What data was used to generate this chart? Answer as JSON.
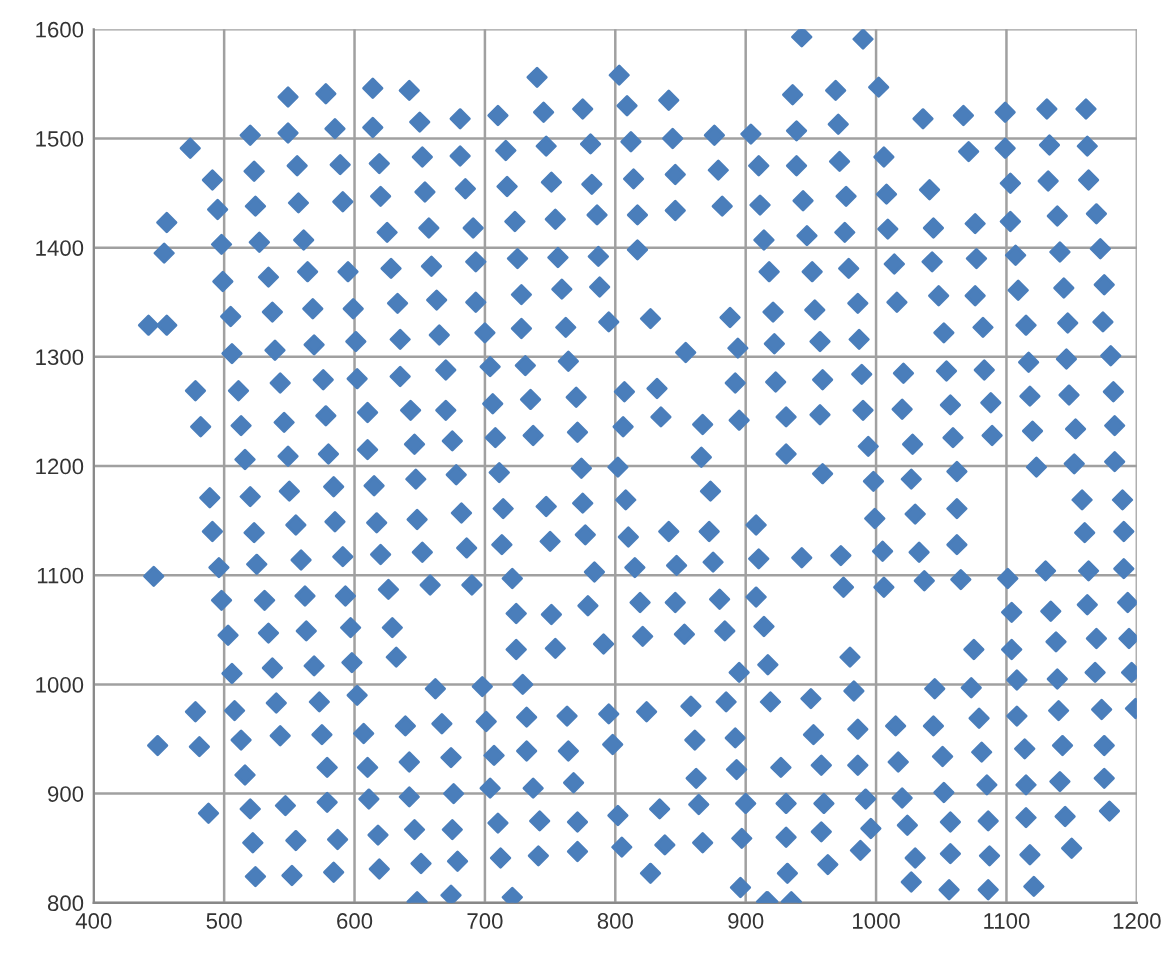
{
  "chart_data": {
    "type": "scatter",
    "marker": "diamond",
    "grid": true,
    "xlim": [
      400,
      1200
    ],
    "ylim": [
      800,
      1600
    ],
    "xticks": [
      400,
      500,
      600,
      700,
      800,
      900,
      1000,
      1100,
      1200
    ],
    "yticks": [
      800,
      900,
      1000,
      1100,
      1200,
      1300,
      1400,
      1500,
      1600
    ],
    "series": [
      {
        "color": "#4a7ebb",
        "x": [
          549,
          578,
          614,
          642,
          520,
          549,
          585,
          614,
          650,
          474,
          491,
          523,
          556,
          589,
          619,
          652,
          495,
          524,
          557,
          591,
          620,
          654,
          456,
          454,
          498,
          527,
          561,
          625,
          657,
          499,
          534,
          564,
          595,
          628,
          659,
          442,
          456,
          505,
          537,
          568,
          599,
          633,
          663,
          506,
          539,
          569,
          601,
          635,
          478,
          511,
          543,
          576,
          602,
          635,
          482,
          513,
          546,
          578,
          610,
          643,
          516,
          549,
          580,
          610,
          646,
          740,
          803,
          681,
          710,
          745,
          775,
          809,
          841,
          681,
          716,
          747,
          781,
          812,
          844,
          876,
          904,
          685,
          717,
          751,
          782,
          814,
          846,
          879,
          910,
          691,
          723,
          754,
          786,
          817,
          846,
          882,
          911,
          914,
          693,
          725,
          756,
          787,
          817,
          918,
          693,
          728,
          759,
          788,
          921,
          665,
          700,
          728,
          762,
          795,
          827,
          888,
          922,
          894,
          854,
          670,
          704,
          731,
          764,
          892,
          923,
          670,
          706,
          735,
          770,
          807,
          832,
          675,
          708,
          737,
          771,
          806,
          835,
          867,
          895,
          866,
          678,
          711,
          774,
          802,
          943,
          990,
          936,
          969,
          1002,
          1036,
          1067,
          1099,
          1131,
          1161,
          939,
          971,
          1071,
          1099,
          1133,
          1162,
          939,
          972,
          1006,
          1103,
          1132,
          1163,
          944,
          977,
          1008,
          1041,
          947,
          976,
          1009,
          1044,
          1076,
          1103,
          1139,
          1169,
          951,
          979,
          1014,
          1043,
          1077,
          1107,
          1141,
          1172,
          953,
          986,
          1016,
          1048,
          1076,
          1109,
          1144,
          1175,
          957,
          987,
          1052,
          1082,
          1115,
          1147,
          1174,
          959,
          989,
          1021,
          1054,
          1083,
          1117,
          1146,
          1180,
          931,
          957,
          990,
          1020,
          1057,
          1088,
          1118,
          1148,
          1182,
          931,
          994,
          1028,
          1059,
          1089,
          1120,
          1153,
          1183,
          959,
          1062,
          1123,
          1152,
          1183,
          489,
          520,
          550,
          584,
          615,
          647,
          491,
          523,
          555,
          585,
          617,
          648,
          446,
          496,
          525,
          559,
          591,
          620,
          652,
          626,
          658,
          498,
          531,
          562,
          593,
          503,
          534,
          563,
          597,
          629,
          506,
          537,
          569,
          598,
          632,
          602,
          662,
          478,
          508,
          540,
          573,
          449,
          481,
          513,
          543,
          575,
          607,
          639,
          516,
          579,
          610,
          642,
          488,
          520,
          547,
          579,
          611,
          642,
          522,
          555,
          587,
          618,
          646,
          524,
          552,
          584,
          619,
          651,
          648,
          682,
          714,
          747,
          775,
          808,
          873,
          686,
          713,
          750,
          777,
          810,
          841,
          872,
          908,
          690,
          721,
          784,
          815,
          847,
          875,
          910,
          724,
          751,
          779,
          819,
          846,
          880,
          908,
          914,
          724,
          754,
          791,
          821,
          853,
          884,
          895,
          917,
          698,
          729,
          667,
          701,
          732,
          763,
          795,
          824,
          858,
          885,
          919,
          674,
          707,
          732,
          764,
          798,
          861,
          892,
          862,
          893,
          676,
          704,
          737,
          768,
          675,
          710,
          742,
          771,
          802,
          834,
          864,
          900,
          679,
          712,
          741,
          771,
          805,
          838,
          867,
          897,
          827,
          896,
          674,
          721,
          916,
          998,
          1027,
          1158,
          1189,
          999,
          1030,
          1062,
          1160,
          1190,
          943,
          973,
          1005,
          1033,
          1062,
          1130,
          1163,
          1190,
          1101,
          975,
          1006,
          1037,
          1065,
          1104,
          1134,
          1162,
          1193,
          980,
          1075,
          1104,
          1138,
          1169,
          1194,
          983,
          1045,
          1073,
          1108,
          1139,
          1168,
          1196,
          950,
          1199,
          952,
          986,
          1015,
          1044,
          1079,
          1108,
          1140,
          1173,
          927,
          958,
          986,
          1017,
          1051,
          1081,
          1114,
          1143,
          1175,
          1175,
          1085,
          1115,
          1141,
          931,
          960,
          992,
          1020,
          1052,
          1179,
          931,
          958,
          996,
          1024,
          1057,
          1086,
          1115,
          1145,
          988,
          963,
          1150,
          932,
          1030,
          1057,
          1087,
          1118,
          1027,
          1056,
          1086,
          1121,
          917,
          935
        ],
        "values": [
          1538,
          1541,
          1546,
          1544,
          1503,
          1505,
          1509,
          1510,
          1515,
          1491,
          1462,
          1470,
          1475,
          1476,
          1477,
          1483,
          1435,
          1438,
          1441,
          1442,
          1447,
          1451,
          1423,
          1395,
          1403,
          1405,
          1407,
          1414,
          1418,
          1369,
          1373,
          1378,
          1378,
          1381,
          1383,
          1329,
          1329,
          1337,
          1341,
          1344,
          1344,
          1349,
          1352,
          1303,
          1306,
          1311,
          1314,
          1316,
          1269,
          1269,
          1276,
          1279,
          1280,
          1282,
          1236,
          1237,
          1240,
          1246,
          1249,
          1251,
          1206,
          1209,
          1211,
          1215,
          1220,
          1556,
          1558,
          1518,
          1521,
          1524,
          1527,
          1530,
          1535,
          1484,
          1489,
          1493,
          1495,
          1497,
          1500,
          1503,
          1504,
          1454,
          1456,
          1460,
          1458,
          1463,
          1467,
          1471,
          1475,
          1418,
          1424,
          1426,
          1430,
          1430,
          1434,
          1438,
          1439,
          1407,
          1387,
          1390,
          1391,
          1392,
          1398,
          1378,
          1350,
          1357,
          1362,
          1364,
          1341,
          1320,
          1322,
          1326,
          1327,
          1332,
          1335,
          1336,
          1312,
          1308,
          1304,
          1288,
          1291,
          1292,
          1296,
          1276,
          1277,
          1251,
          1257,
          1261,
          1263,
          1268,
          1271,
          1223,
          1226,
          1228,
          1231,
          1236,
          1245,
          1238,
          1242,
          1208,
          1192,
          1194,
          1198,
          1199,
          1593,
          1591,
          1540,
          1544,
          1547,
          1518,
          1521,
          1524,
          1527,
          1527,
          1507,
          1513,
          1488,
          1491,
          1494,
          1493,
          1475,
          1479,
          1483,
          1459,
          1461,
          1462,
          1443,
          1447,
          1449,
          1453,
          1411,
          1414,
          1417,
          1418,
          1422,
          1424,
          1429,
          1431,
          1378,
          1381,
          1385,
          1387,
          1390,
          1393,
          1396,
          1399,
          1343,
          1349,
          1350,
          1356,
          1356,
          1361,
          1363,
          1366,
          1314,
          1316,
          1322,
          1327,
          1329,
          1331,
          1332,
          1279,
          1284,
          1285,
          1287,
          1288,
          1295,
          1298,
          1301,
          1245,
          1247,
          1251,
          1252,
          1256,
          1258,
          1264,
          1265,
          1268,
          1211,
          1218,
          1220,
          1226,
          1228,
          1232,
          1234,
          1237,
          1193,
          1195,
          1199,
          1202,
          1204,
          1171,
          1172,
          1177,
          1181,
          1182,
          1188,
          1140,
          1139,
          1146,
          1149,
          1148,
          1151,
          1099,
          1107,
          1110,
          1114,
          1117,
          1119,
          1121,
          1087,
          1091,
          1077,
          1077,
          1081,
          1081,
          1045,
          1047,
          1049,
          1052,
          1052,
          1010,
          1015,
          1017,
          1020,
          1025,
          990,
          996,
          975,
          976,
          983,
          984,
          944,
          943,
          949,
          953,
          954,
          955,
          962,
          917,
          924,
          924,
          929,
          882,
          886,
          889,
          892,
          895,
          897,
          855,
          857,
          858,
          862,
          867,
          824,
          825,
          828,
          831,
          836,
          801,
          1157,
          1161,
          1163,
          1166,
          1169,
          1177,
          1125,
          1128,
          1131,
          1137,
          1135,
          1140,
          1140,
          1146,
          1091,
          1097,
          1103,
          1107,
          1109,
          1112,
          1115,
          1065,
          1064,
          1072,
          1075,
          1075,
          1078,
          1080,
          1053,
          1032,
          1033,
          1037,
          1044,
          1046,
          1049,
          1011,
          1018,
          998,
          1000,
          964,
          966,
          970,
          971,
          973,
          975,
          980,
          984,
          984,
          933,
          935,
          939,
          939,
          945,
          949,
          951,
          914,
          922,
          900,
          905,
          905,
          910,
          867,
          873,
          875,
          874,
          880,
          886,
          890,
          891,
          838,
          841,
          843,
          847,
          851,
          853,
          855,
          859,
          827,
          814,
          807,
          805,
          801,
          1186,
          1188,
          1169,
          1169,
          1152,
          1156,
          1161,
          1139,
          1140,
          1116,
          1118,
          1122,
          1121,
          1128,
          1104,
          1104,
          1106,
          1097,
          1089,
          1089,
          1095,
          1096,
          1066,
          1067,
          1073,
          1075,
          1025,
          1032,
          1032,
          1039,
          1042,
          1042,
          994,
          996,
          997,
          1004,
          1005,
          1011,
          1011,
          987,
          978,
          954,
          959,
          962,
          962,
          969,
          971,
          976,
          977,
          924,
          926,
          926,
          929,
          934,
          938,
          941,
          944,
          944,
          914,
          908,
          908,
          911,
          891,
          891,
          895,
          896,
          901,
          884,
          860,
          865,
          868,
          871,
          874,
          875,
          878,
          879,
          848,
          835,
          850,
          827,
          841,
          845,
          843,
          844,
          819,
          812,
          812,
          815,
          801,
          801
        ]
      }
    ]
  }
}
